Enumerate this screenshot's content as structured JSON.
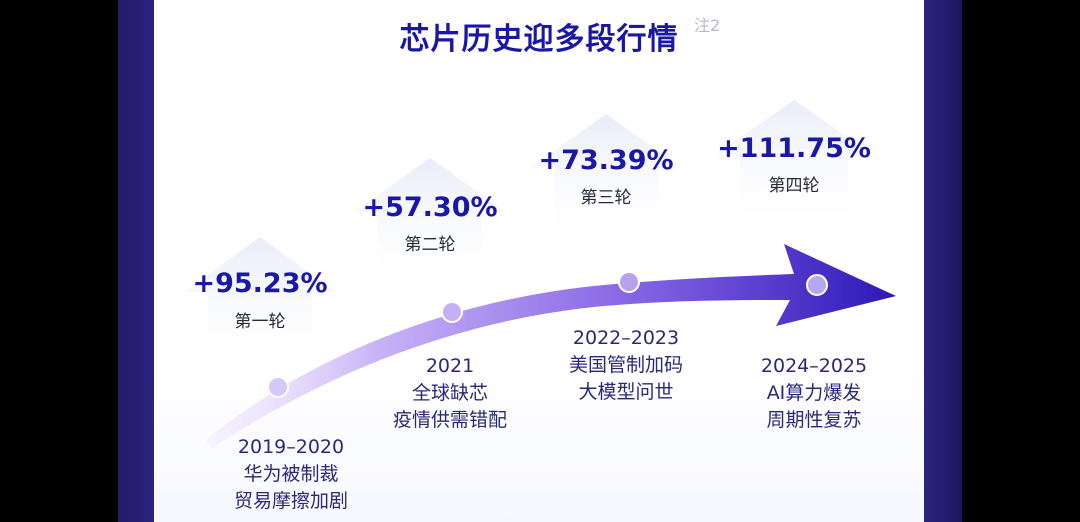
{
  "title": "芯片历史迎多段行情",
  "title_note": "注2",
  "rounds": [
    {
      "gain": "+95.23%",
      "round": "第一轮",
      "period": "2019–2020",
      "line1": "华为被制裁",
      "line2": "贸易摩擦加剧"
    },
    {
      "gain": "+57.30%",
      "round": "第二轮",
      "period": "2021",
      "line1": "全球缺芯",
      "line2": "疫情供需错配"
    },
    {
      "gain": "+73.39%",
      "round": "第三轮",
      "period": "2022–2023",
      "line1": "美国管制加码",
      "line2": "大模型问世"
    },
    {
      "gain": "+111.75%",
      "round": "第四轮",
      "period": "2024–2025",
      "line1": "AI算力爆发",
      "line2": "周期性复苏"
    }
  ],
  "colors": {
    "title": "#1a17a6",
    "arrow_start": "#e6d8ff",
    "arrow_mid": "#8d6de8",
    "arrow_end": "#2a16b5",
    "up_arrow": "#eef0fb"
  }
}
